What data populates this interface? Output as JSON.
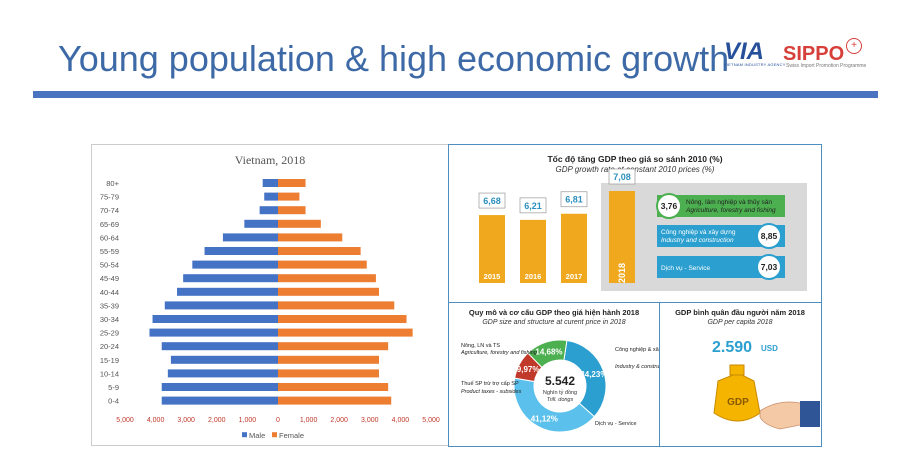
{
  "slide": {
    "title": "Young population & high economic growth",
    "logo_via": "VIA",
    "logo_via_sub": "VIETNAM INDUSTRY AGENCY",
    "logo_sippo": "SIPPO",
    "logo_sippo_sub": "Swiss Import Promotion Programme"
  },
  "chart_data": [
    {
      "type": "bar",
      "orientation": "horizontal",
      "title": "Vietnam, 2018",
      "categories": [
        "0-4",
        "5-9",
        "10-14",
        "15-19",
        "20-24",
        "25-29",
        "30-34",
        "35-39",
        "40-44",
        "45-49",
        "50-54",
        "55-59",
        "60-64",
        "65-69",
        "70-74",
        "75-79",
        "80+"
      ],
      "series": [
        {
          "name": "Male",
          "color": "#4472c4",
          "values": [
            3800,
            3800,
            3600,
            3500,
            3800,
            4200,
            4100,
            3700,
            3300,
            3100,
            2800,
            2400,
            1800,
            1100,
            600,
            450,
            500
          ]
        },
        {
          "name": "Female",
          "color": "#ed7d31",
          "values": [
            3700,
            3600,
            3300,
            3300,
            3600,
            4400,
            4200,
            3800,
            3300,
            3200,
            2900,
            2700,
            2100,
            1400,
            900,
            700,
            900
          ]
        }
      ],
      "xticks": [
        "5,000",
        "4,000",
        "3,000",
        "2,000",
        "1,000",
        "0",
        "1,000",
        "2,000",
        "3,000",
        "4,000",
        "5,000"
      ],
      "xlim": [
        -5000,
        5000
      ],
      "legend": "bottom"
    },
    {
      "type": "bar",
      "title": "Tốc độ tăng GDP theo giá so sánh 2010 (%)",
      "subtitle": "GDP growth rate at constant 2010 prices (%)",
      "categories": [
        "2015",
        "2016",
        "2017",
        "2018"
      ],
      "values": [
        6.68,
        6.21,
        6.81,
        7.08
      ],
      "value_labels": [
        "6,68",
        "6,21",
        "6,81",
        "7,08"
      ],
      "color": "#f0a81f",
      "sectors": [
        {
          "vn": "Nông, lâm nghiệp và thủy sản",
          "en": "Agriculture, forestry and fishing",
          "value": "3,76",
          "color": "#4caf50"
        },
        {
          "vn": "Công nghiệp và xây dựng",
          "en": "Industry and construction",
          "value": "8,85",
          "color": "#2b9fcf"
        },
        {
          "vn": "Dịch vụ - Service",
          "en": "",
          "value": "7,03",
          "color": "#2b9fcf"
        }
      ]
    },
    {
      "type": "pie",
      "title": "Quy mô và cơ cấu GDP theo giá hiện hành 2018",
      "subtitle": "GDP size and structure at curent price in 2018",
      "center_value": "5.542",
      "center_unit_vn": "Nghìn tỷ đồng",
      "center_unit_en": "Trill. dongs",
      "slices": [
        {
          "label_vn": "Công nghiệp & xây dựng",
          "label_en": "Industry & construction",
          "value": 34.23,
          "display": "34,23%",
          "color": "#2b9fcf"
        },
        {
          "label_vn": "Dịch vụ - Service",
          "label_en": "",
          "value": 41.12,
          "display": "41,12%",
          "color": "#5bc0eb"
        },
        {
          "label_vn": "Thuế SP trừ trợ cấp SP",
          "label_en": "Product taxes - subsides",
          "value": 9.97,
          "display": "9,97%",
          "color": "#c0392b"
        },
        {
          "label_vn": "Nông, LN và TS",
          "label_en": "Agriculture, forestry and fishing",
          "value": 14.68,
          "display": "14,68%",
          "color": "#4caf50"
        }
      ]
    }
  ],
  "per_capita": {
    "title": "GDP bình quân đầu người năm 2018",
    "subtitle": "GDP per capita 2018",
    "value": "2.590",
    "unit": "USD",
    "bag_label": "GDP"
  }
}
